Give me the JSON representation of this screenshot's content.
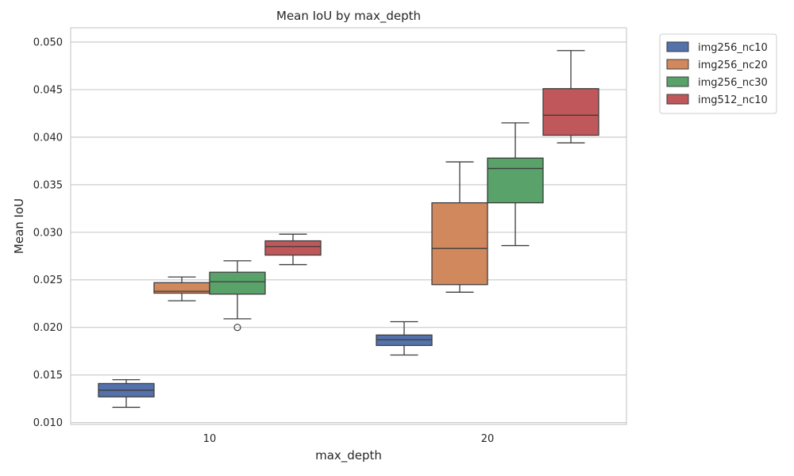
{
  "chart_data": {
    "type": "box",
    "title": "Mean IoU by max_depth",
    "xlabel": "max_depth",
    "ylabel": "Mean IoU",
    "categories": [
      "10",
      "20"
    ],
    "ylim": [
      0.0098,
      0.0515
    ],
    "yticks": [
      "0.010",
      "0.015",
      "0.020",
      "0.025",
      "0.030",
      "0.035",
      "0.040",
      "0.045",
      "0.050"
    ],
    "grid": "horizontal",
    "legend_position": "outside-top-right",
    "series": [
      {
        "name": "img256_nc10",
        "color": "#5471ab",
        "boxes": [
          {
            "whisker_low": 0.0116,
            "q1": 0.0127,
            "median": 0.0134,
            "q3": 0.0141,
            "whisker_high": 0.0145,
            "outliers": []
          },
          {
            "whisker_low": 0.0171,
            "q1": 0.0181,
            "median": 0.0187,
            "q3": 0.0192,
            "whisker_high": 0.0206,
            "outliers": []
          }
        ]
      },
      {
        "name": "img256_nc20",
        "color": "#d1885c",
        "boxes": [
          {
            "whisker_low": 0.0228,
            "q1": 0.0236,
            "median": 0.0238,
            "q3": 0.0247,
            "whisker_high": 0.0253,
            "outliers": []
          },
          {
            "whisker_low": 0.0237,
            "q1": 0.0245,
            "median": 0.0283,
            "q3": 0.0331,
            "whisker_high": 0.0374,
            "outliers": []
          }
        ]
      },
      {
        "name": "img256_nc30",
        "color": "#59a26a",
        "boxes": [
          {
            "whisker_low": 0.0209,
            "q1": 0.0235,
            "median": 0.0248,
            "q3": 0.0258,
            "whisker_high": 0.027,
            "outliers": [
              0.02
            ]
          },
          {
            "whisker_low": 0.0286,
            "q1": 0.0331,
            "median": 0.0367,
            "q3": 0.0378,
            "whisker_high": 0.0415,
            "outliers": []
          }
        ]
      },
      {
        "name": "img512_nc10",
        "color": "#c0575a",
        "boxes": [
          {
            "whisker_low": 0.0266,
            "q1": 0.0276,
            "median": 0.0285,
            "q3": 0.0291,
            "whisker_high": 0.0298,
            "outliers": []
          },
          {
            "whisker_low": 0.0394,
            "q1": 0.0402,
            "median": 0.0423,
            "q3": 0.0451,
            "whisker_high": 0.0491,
            "outliers": []
          }
        ]
      }
    ]
  }
}
